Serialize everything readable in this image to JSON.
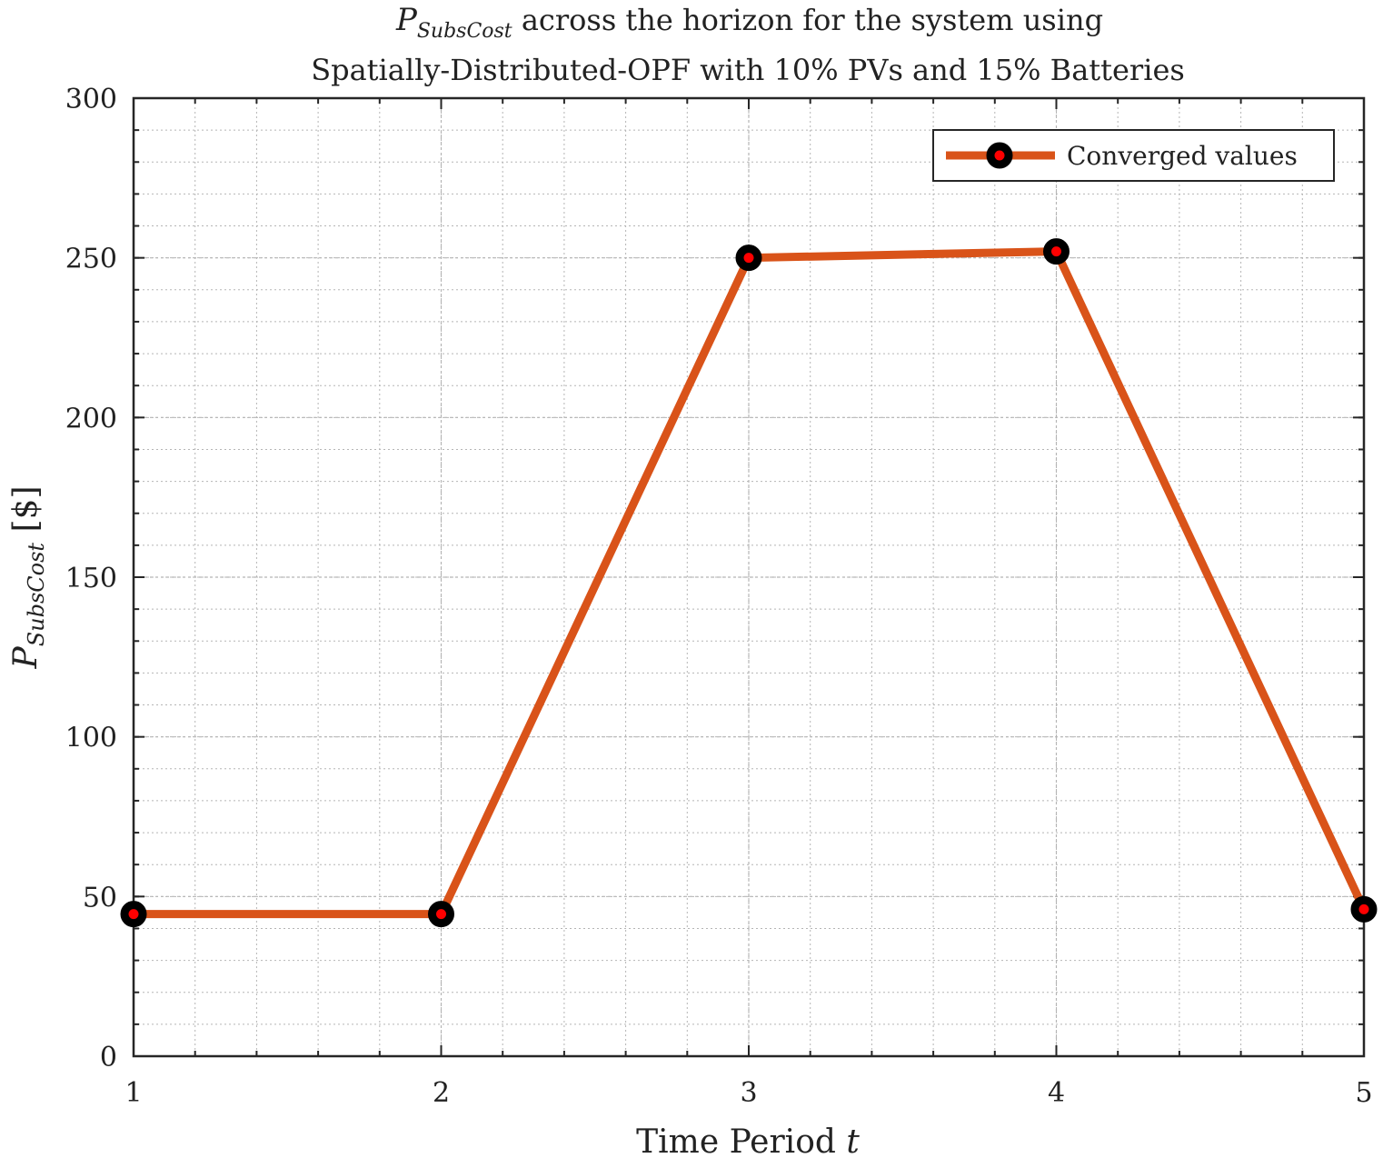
{
  "colors": {
    "line": "#D95319",
    "marker_fill": "#FF0000",
    "marker_edge": "#000000",
    "grid": "#b5b5b5",
    "axis": "#262626"
  },
  "chart_data": {
    "type": "line",
    "title": {
      "line1_symbol": "P",
      "line1_subscript": "SubsCost",
      "line1_rest": " across the horizon for the system using",
      "line2": "Spatially-Distributed-OPF with 10% PVs and 15% Batteries"
    },
    "xlabel": {
      "text": "Time Period ",
      "var": "t"
    },
    "ylabel": {
      "symbol": "P",
      "subscript": "SubsCost",
      "unit": " [$]"
    },
    "xlim": [
      1,
      5
    ],
    "ylim": [
      0,
      300
    ],
    "xticks": [
      1,
      2,
      3,
      4,
      5
    ],
    "yticks": [
      0,
      50,
      100,
      150,
      200,
      250,
      300
    ],
    "grid": true,
    "minor_grid": true,
    "legend_position": "top-right",
    "series": [
      {
        "name": "Converged values",
        "x": [
          1,
          2,
          3,
          4,
          5
        ],
        "values": [
          44.5,
          44.5,
          250,
          252,
          46
        ]
      }
    ]
  }
}
